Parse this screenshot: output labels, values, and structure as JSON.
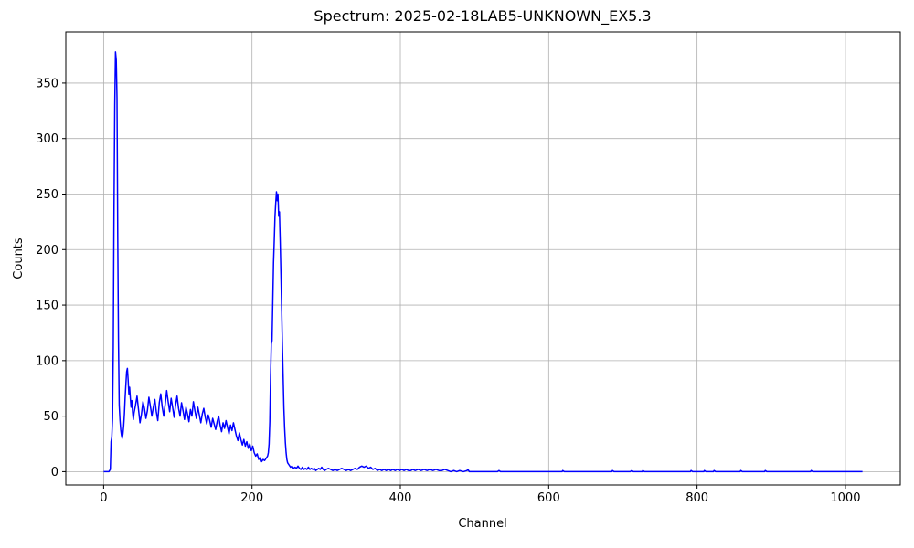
{
  "title": "Spectrum: 2025-02-18LAB5-UNKNOWN_EX5.3",
  "chart_data": {
    "type": "line",
    "title": "Spectrum: 2025-02-18LAB5-UNKNOWN_EX5.3",
    "xlabel": "Channel",
    "ylabel": "Counts",
    "xlim": [
      -51,
      1074
    ],
    "ylim": [
      -12,
      396
    ],
    "x_ticks": [
      0,
      200,
      400,
      600,
      800,
      1000
    ],
    "y_ticks": [
      0,
      50,
      100,
      150,
      200,
      250,
      300,
      350
    ],
    "grid": true,
    "legend": "none",
    "line_color": "#0000ff",
    "series": [
      {
        "name": "spectrum-counts",
        "points": [
          [
            0,
            0
          ],
          [
            7,
            0
          ],
          [
            9,
            2
          ],
          [
            10,
            27
          ],
          [
            11,
            31
          ],
          [
            12,
            48
          ],
          [
            13,
            112
          ],
          [
            14,
            238
          ],
          [
            15,
            330
          ],
          [
            16,
            378
          ],
          [
            17,
            371
          ],
          [
            18,
            337
          ],
          [
            19,
            212
          ],
          [
            20,
            117
          ],
          [
            21,
            60
          ],
          [
            22,
            47
          ],
          [
            23,
            38
          ],
          [
            24,
            33
          ],
          [
            25,
            30
          ],
          [
            26,
            34
          ],
          [
            27,
            41
          ],
          [
            28,
            52
          ],
          [
            29,
            67
          ],
          [
            30,
            79
          ],
          [
            31,
            90
          ],
          [
            32,
            93
          ],
          [
            33,
            83
          ],
          [
            34,
            70
          ],
          [
            35,
            76
          ],
          [
            36,
            66
          ],
          [
            37,
            58
          ],
          [
            38,
            64
          ],
          [
            39,
            54
          ],
          [
            40,
            47
          ],
          [
            41,
            53
          ],
          [
            43,
            60
          ],
          [
            45,
            68
          ],
          [
            47,
            56
          ],
          [
            49,
            44
          ],
          [
            51,
            52
          ],
          [
            53,
            63
          ],
          [
            55,
            57
          ],
          [
            57,
            48
          ],
          [
            59,
            55
          ],
          [
            61,
            67
          ],
          [
            63,
            59
          ],
          [
            65,
            50
          ],
          [
            67,
            58
          ],
          [
            69,
            65
          ],
          [
            71,
            54
          ],
          [
            73,
            46
          ],
          [
            75,
            62
          ],
          [
            77,
            70
          ],
          [
            79,
            58
          ],
          [
            81,
            50
          ],
          [
            83,
            61
          ],
          [
            85,
            73
          ],
          [
            87,
            63
          ],
          [
            89,
            54
          ],
          [
            91,
            66
          ],
          [
            93,
            58
          ],
          [
            95,
            49
          ],
          [
            97,
            60
          ],
          [
            99,
            68
          ],
          [
            101,
            57
          ],
          [
            103,
            50
          ],
          [
            105,
            62
          ],
          [
            107,
            55
          ],
          [
            109,
            47
          ],
          [
            111,
            58
          ],
          [
            113,
            52
          ],
          [
            115,
            45
          ],
          [
            117,
            56
          ],
          [
            119,
            50
          ],
          [
            121,
            63
          ],
          [
            123,
            55
          ],
          [
            125,
            48
          ],
          [
            127,
            58
          ],
          [
            129,
            51
          ],
          [
            131,
            44
          ],
          [
            133,
            52
          ],
          [
            135,
            57
          ],
          [
            137,
            49
          ],
          [
            139,
            43
          ],
          [
            141,
            51
          ],
          [
            143,
            46
          ],
          [
            145,
            40
          ],
          [
            147,
            48
          ],
          [
            149,
            43
          ],
          [
            151,
            38
          ],
          [
            153,
            45
          ],
          [
            155,
            50
          ],
          [
            157,
            42
          ],
          [
            159,
            36
          ],
          [
            161,
            44
          ],
          [
            163,
            39
          ],
          [
            165,
            46
          ],
          [
            167,
            40
          ],
          [
            169,
            34
          ],
          [
            171,
            42
          ],
          [
            173,
            37
          ],
          [
            175,
            44
          ],
          [
            177,
            38
          ],
          [
            179,
            32
          ],
          [
            181,
            28
          ],
          [
            183,
            35
          ],
          [
            185,
            29
          ],
          [
            187,
            24
          ],
          [
            189,
            29
          ],
          [
            191,
            23
          ],
          [
            193,
            27
          ],
          [
            195,
            21
          ],
          [
            197,
            25
          ],
          [
            199,
            19
          ],
          [
            201,
            23
          ],
          [
            203,
            17
          ],
          [
            205,
            14
          ],
          [
            207,
            16
          ],
          [
            209,
            11
          ],
          [
            211,
            13
          ],
          [
            213,
            9
          ],
          [
            215,
            11
          ],
          [
            217,
            10
          ],
          [
            219,
            12
          ],
          [
            221,
            14
          ],
          [
            222,
            17
          ],
          [
            223,
            25
          ],
          [
            224,
            45
          ],
          [
            225,
            85
          ],
          [
            226,
            115
          ],
          [
            227,
            118
          ],
          [
            228,
            152
          ],
          [
            229,
            188
          ],
          [
            230,
            208
          ],
          [
            231,
            230
          ],
          [
            232,
            242
          ],
          [
            233,
            252
          ],
          [
            234,
            244
          ],
          [
            235,
            250
          ],
          [
            236,
            230
          ],
          [
            237,
            234
          ],
          [
            238,
            208
          ],
          [
            239,
            178
          ],
          [
            240,
            146
          ],
          [
            241,
            114
          ],
          [
            242,
            85
          ],
          [
            243,
            57
          ],
          [
            244,
            39
          ],
          [
            245,
            26
          ],
          [
            246,
            17
          ],
          [
            247,
            11
          ],
          [
            248,
            8
          ],
          [
            250,
            6
          ],
          [
            252,
            4
          ],
          [
            254,
            5
          ],
          [
            256,
            3
          ],
          [
            258,
            4
          ],
          [
            260,
            3
          ],
          [
            262,
            5
          ],
          [
            264,
            3
          ],
          [
            266,
            2
          ],
          [
            268,
            4
          ],
          [
            270,
            2
          ],
          [
            272,
            3
          ],
          [
            274,
            2
          ],
          [
            276,
            4
          ],
          [
            278,
            2
          ],
          [
            280,
            3
          ],
          [
            282,
            2
          ],
          [
            284,
            3
          ],
          [
            286,
            1
          ],
          [
            288,
            2
          ],
          [
            290,
            3
          ],
          [
            292,
            2
          ],
          [
            294,
            4
          ],
          [
            296,
            2
          ],
          [
            298,
            1
          ],
          [
            300,
            2
          ],
          [
            303,
            3
          ],
          [
            306,
            2
          ],
          [
            309,
            1
          ],
          [
            312,
            2
          ],
          [
            315,
            1
          ],
          [
            318,
            2
          ],
          [
            321,
            3
          ],
          [
            324,
            2
          ],
          [
            327,
            1
          ],
          [
            330,
            2
          ],
          [
            333,
            1
          ],
          [
            336,
            2
          ],
          [
            339,
            3
          ],
          [
            342,
            2
          ],
          [
            345,
            4
          ],
          [
            348,
            5
          ],
          [
            351,
            4
          ],
          [
            354,
            5
          ],
          [
            357,
            3
          ],
          [
            360,
            4
          ],
          [
            363,
            2
          ],
          [
            366,
            3
          ],
          [
            369,
            1
          ],
          [
            372,
            2
          ],
          [
            375,
            1
          ],
          [
            378,
            2
          ],
          [
            381,
            1
          ],
          [
            384,
            2
          ],
          [
            387,
            1
          ],
          [
            390,
            2
          ],
          [
            393,
            1
          ],
          [
            396,
            2
          ],
          [
            399,
            1
          ],
          [
            402,
            2
          ],
          [
            405,
            1
          ],
          [
            408,
            2
          ],
          [
            411,
            1
          ],
          [
            414,
            1
          ],
          [
            417,
            2
          ],
          [
            420,
            1
          ],
          [
            424,
            2
          ],
          [
            428,
            1
          ],
          [
            432,
            2
          ],
          [
            436,
            1
          ],
          [
            440,
            2
          ],
          [
            444,
            1
          ],
          [
            448,
            2
          ],
          [
            452,
            1
          ],
          [
            456,
            1
          ],
          [
            460,
            2
          ],
          [
            464,
            1
          ],
          [
            468,
            0
          ],
          [
            472,
            1
          ],
          [
            476,
            0
          ],
          [
            480,
            1
          ],
          [
            485,
            0
          ],
          [
            490,
            1
          ],
          [
            491,
            2
          ],
          [
            493,
            0
          ],
          [
            500,
            0
          ],
          [
            510,
            0
          ],
          [
            531,
            0
          ],
          [
            533,
            1
          ],
          [
            535,
            0
          ],
          [
            550,
            0
          ],
          [
            570,
            0
          ],
          [
            590,
            0
          ],
          [
            610,
            0
          ],
          [
            618,
            0
          ],
          [
            619,
            1
          ],
          [
            621,
            0
          ],
          [
            640,
            0
          ],
          [
            660,
            0
          ],
          [
            685,
            0
          ],
          [
            686,
            1
          ],
          [
            688,
            0
          ],
          [
            710,
            0
          ],
          [
            712,
            1
          ],
          [
            714,
            0
          ],
          [
            726,
            0
          ],
          [
            727,
            1
          ],
          [
            729,
            0
          ],
          [
            750,
            0
          ],
          [
            770,
            0
          ],
          [
            791,
            0
          ],
          [
            792,
            1
          ],
          [
            794,
            0
          ],
          [
            809,
            0
          ],
          [
            810,
            1
          ],
          [
            812,
            0
          ],
          [
            822,
            0
          ],
          [
            823,
            1
          ],
          [
            825,
            0
          ],
          [
            840,
            0
          ],
          [
            858,
            0
          ],
          [
            859,
            1
          ],
          [
            861,
            0
          ],
          [
            880,
            0
          ],
          [
            891,
            0
          ],
          [
            892,
            1
          ],
          [
            894,
            0
          ],
          [
            910,
            0
          ],
          [
            930,
            0
          ],
          [
            953,
            0
          ],
          [
            954,
            1
          ],
          [
            956,
            0
          ],
          [
            980,
            0
          ],
          [
            1000,
            0
          ],
          [
            1023,
            0
          ]
        ]
      }
    ]
  }
}
